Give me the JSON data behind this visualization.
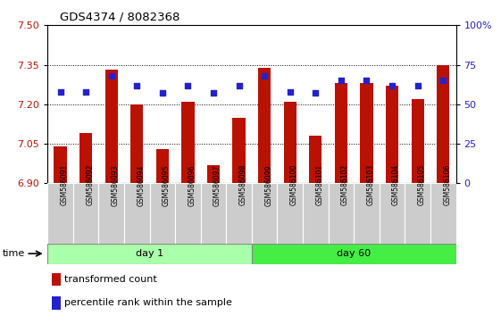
{
  "title": "GDS4374 / 8082368",
  "samples": [
    "GSM586091",
    "GSM586092",
    "GSM586093",
    "GSM586094",
    "GSM586095",
    "GSM586096",
    "GSM586097",
    "GSM586098",
    "GSM586099",
    "GSM586100",
    "GSM586101",
    "GSM586102",
    "GSM586103",
    "GSM586104",
    "GSM586105",
    "GSM586106"
  ],
  "transformed_count": [
    7.04,
    7.09,
    7.33,
    7.2,
    7.03,
    7.21,
    6.97,
    7.15,
    7.34,
    7.21,
    7.08,
    7.28,
    7.28,
    7.27,
    7.22,
    7.35
  ],
  "percentile_rank": [
    58,
    58,
    68,
    62,
    57,
    62,
    57,
    62,
    68,
    58,
    57,
    65,
    65,
    62,
    62,
    65
  ],
  "ylim_left": [
    6.9,
    7.5
  ],
  "ylim_right": [
    0,
    100
  ],
  "yticks_left": [
    6.9,
    7.05,
    7.2,
    7.35,
    7.5
  ],
  "yticks_right": [
    0,
    25,
    50,
    75,
    100
  ],
  "ytick_labels_right": [
    "0",
    "25",
    "50",
    "75",
    "100%"
  ],
  "bar_color": "#BB1100",
  "dot_color": "#2222CC",
  "bar_width": 0.5,
  "background_color": "#ffffff",
  "label_bg_color": "#CCCCCC",
  "day1_color": "#AAFFAA",
  "day60_color": "#44EE44",
  "day1_label": "day 1",
  "day60_label": "day 60",
  "legend_label_bar": "transformed count",
  "legend_label_dot": "percentile rank within the sample",
  "time_label": "time",
  "grid_dotted_at": [
    7.05,
    7.2,
    7.35
  ],
  "n_day1": 8,
  "n_day60": 8
}
